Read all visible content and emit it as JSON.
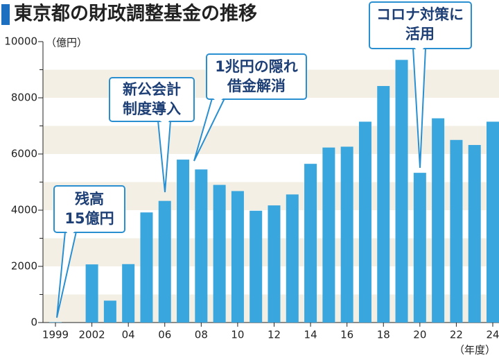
{
  "chart_data": {
    "type": "bar",
    "title": "東京都の財政調整基金の推移",
    "y_unit": "（億円）",
    "x_unit": "（年度）",
    "categories": [
      "1999",
      null,
      "2002",
      null,
      "04",
      null,
      "06",
      null,
      "08",
      null,
      "10",
      null,
      "12",
      null,
      "14",
      null,
      "16",
      null,
      "18",
      null,
      "20",
      null,
      "22",
      null,
      "24"
    ],
    "values": [
      15,
      null,
      2070,
      780,
      2080,
      3920,
      4330,
      5800,
      5450,
      4900,
      4680,
      3980,
      4170,
      4560,
      5650,
      6230,
      6260,
      7150,
      8420,
      9350,
      5330,
      7270,
      6500,
      6320,
      7150
    ],
    "color": "#3aa6de",
    "ylim": [
      0,
      10000
    ],
    "yticks": [
      0,
      2000,
      4000,
      6000,
      8000,
      10000
    ],
    "annotations": [
      [
        "残高",
        "15億円"
      ],
      [
        "新公会計",
        "制度導入"
      ],
      [
        "1兆円の隠れ",
        "借金解消"
      ],
      [
        "コロナ対策に",
        "活用"
      ]
    ]
  }
}
